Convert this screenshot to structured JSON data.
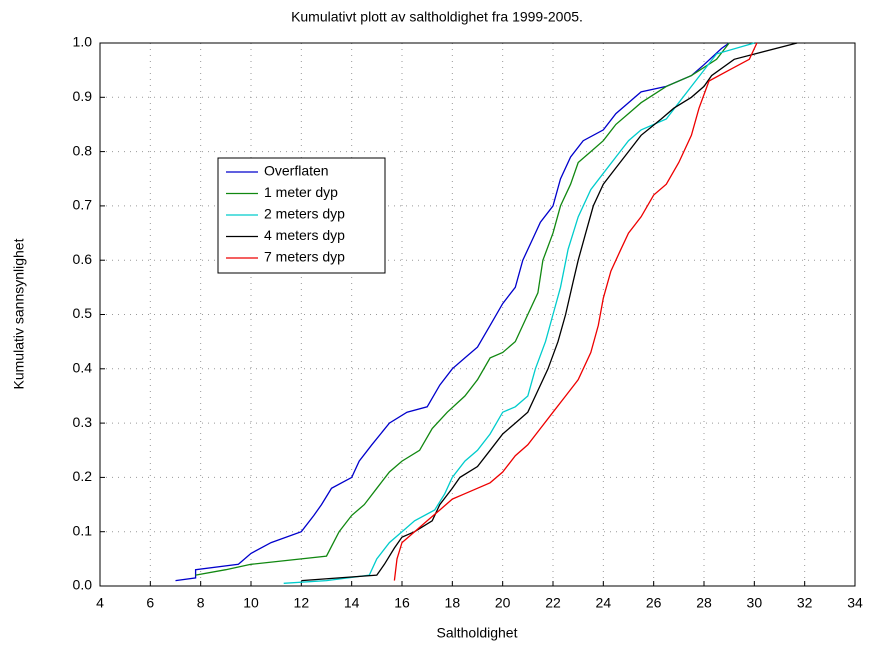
{
  "chart_data": {
    "type": "line",
    "title": "Kumulativt plott av saltholdighet fra 1999-2005.",
    "x_label": "Saltholdighet",
    "y_label": "Kumulativ sannsynlighet",
    "xlim": [
      4,
      34
    ],
    "xticks": [
      4,
      6,
      8,
      10,
      12,
      14,
      16,
      18,
      20,
      22,
      24,
      26,
      28,
      30,
      32,
      34
    ],
    "ylim": [
      0,
      1
    ],
    "yticks": [
      {
        "value": 0,
        "label": "0.0"
      },
      0.1,
      0.2,
      0.3,
      0.4,
      0.5,
      0.6,
      0.7,
      0.8,
      0.9,
      {
        "value": 1,
        "label": "1.0"
      }
    ],
    "grid": true,
    "legend_position": "center-left",
    "series": [
      {
        "name": "Overflaten",
        "color": "#0000cc",
        "x": [
          7,
          7.8,
          7.8,
          9.5,
          10,
          10.8,
          12,
          12.5,
          12.8,
          13.2,
          14,
          14.3,
          14.8,
          15.5,
          16.2,
          17,
          17.5,
          18,
          18.5,
          19,
          19.5,
          20,
          20.5,
          20.8,
          21.2,
          21.5,
          22,
          22.3,
          22.7,
          23.2,
          24,
          24.5,
          25,
          25.5,
          26.5,
          27.5,
          28,
          28.7,
          29
        ],
        "values": [
          0.01,
          0.015,
          0.03,
          0.04,
          0.06,
          0.08,
          0.1,
          0.13,
          0.15,
          0.18,
          0.2,
          0.23,
          0.26,
          0.3,
          0.32,
          0.33,
          0.37,
          0.4,
          0.42,
          0.44,
          0.48,
          0.52,
          0.55,
          0.6,
          0.64,
          0.67,
          0.7,
          0.75,
          0.79,
          0.82,
          0.84,
          0.87,
          0.89,
          0.91,
          0.92,
          0.94,
          0.96,
          0.99,
          1.0
        ]
      },
      {
        "name": "1 meter dyp",
        "color": "#118811",
        "x": [
          7.8,
          9,
          10,
          13,
          13.5,
          14,
          14.5,
          15,
          15.5,
          16,
          16.7,
          17.2,
          17.8,
          18.5,
          19,
          19.5,
          20,
          20.5,
          21,
          21.4,
          21.6,
          22,
          22.3,
          22.7,
          23,
          23.5,
          24,
          24.5,
          25,
          25.5,
          26.5,
          27.5,
          28.5,
          29
        ],
        "values": [
          0.02,
          0.03,
          0.04,
          0.055,
          0.1,
          0.13,
          0.15,
          0.18,
          0.21,
          0.23,
          0.25,
          0.29,
          0.32,
          0.35,
          0.38,
          0.42,
          0.43,
          0.45,
          0.5,
          0.54,
          0.6,
          0.65,
          0.7,
          0.74,
          0.78,
          0.8,
          0.82,
          0.85,
          0.87,
          0.89,
          0.92,
          0.94,
          0.97,
          1.0
        ]
      },
      {
        "name": "2 meters dyp",
        "color": "#00cccc",
        "x": [
          11.3,
          13,
          14.7,
          15,
          15.5,
          16,
          16.5,
          17.3,
          17.7,
          18,
          18.5,
          19,
          19.5,
          20,
          20.5,
          21,
          21.3,
          21.7,
          22,
          22.3,
          22.6,
          23,
          23.5,
          24,
          24.5,
          25,
          25.5,
          26.5,
          27,
          27.5,
          28,
          28.5,
          30
        ],
        "values": [
          0.005,
          0.01,
          0.02,
          0.05,
          0.08,
          0.1,
          0.12,
          0.14,
          0.17,
          0.2,
          0.23,
          0.25,
          0.28,
          0.32,
          0.33,
          0.35,
          0.4,
          0.45,
          0.5,
          0.55,
          0.62,
          0.68,
          0.73,
          0.76,
          0.79,
          0.82,
          0.84,
          0.86,
          0.89,
          0.92,
          0.95,
          0.98,
          1.0
        ]
      },
      {
        "name": "4 meters dyp",
        "color": "#000000",
        "x": [
          12,
          15,
          15.3,
          15.7,
          16,
          16.5,
          17.2,
          17.5,
          18,
          18.3,
          19,
          19.5,
          20,
          20.5,
          21,
          21.4,
          21.8,
          22.2,
          22.5,
          22.8,
          23,
          23.3,
          23.6,
          24,
          24.5,
          25,
          25.5,
          26.3,
          26.8,
          27.5,
          28,
          28.3,
          29.2,
          31.7
        ],
        "values": [
          0.01,
          0.02,
          0.04,
          0.07,
          0.09,
          0.1,
          0.12,
          0.15,
          0.18,
          0.2,
          0.22,
          0.25,
          0.28,
          0.3,
          0.32,
          0.36,
          0.4,
          0.45,
          0.5,
          0.56,
          0.6,
          0.65,
          0.7,
          0.74,
          0.77,
          0.8,
          0.83,
          0.86,
          0.88,
          0.9,
          0.92,
          0.94,
          0.97,
          1.0
        ]
      },
      {
        "name": "7 meters dyp",
        "color": "#ee0000",
        "x": [
          15.7,
          15.8,
          16,
          16.5,
          17,
          17.5,
          18,
          18.5,
          19.5,
          20,
          20.5,
          21,
          21.5,
          22,
          22.5,
          23,
          23.5,
          23.8,
          24,
          24.3,
          24.7,
          25,
          25.5,
          26,
          26.5,
          27,
          27.5,
          27.8,
          28.2,
          29,
          29.8,
          30.1
        ],
        "values": [
          0.01,
          0.05,
          0.08,
          0.1,
          0.12,
          0.14,
          0.16,
          0.17,
          0.19,
          0.21,
          0.24,
          0.26,
          0.29,
          0.32,
          0.35,
          0.38,
          0.43,
          0.48,
          0.53,
          0.58,
          0.62,
          0.65,
          0.68,
          0.72,
          0.74,
          0.78,
          0.83,
          0.88,
          0.93,
          0.95,
          0.97,
          1.0
        ]
      }
    ]
  }
}
